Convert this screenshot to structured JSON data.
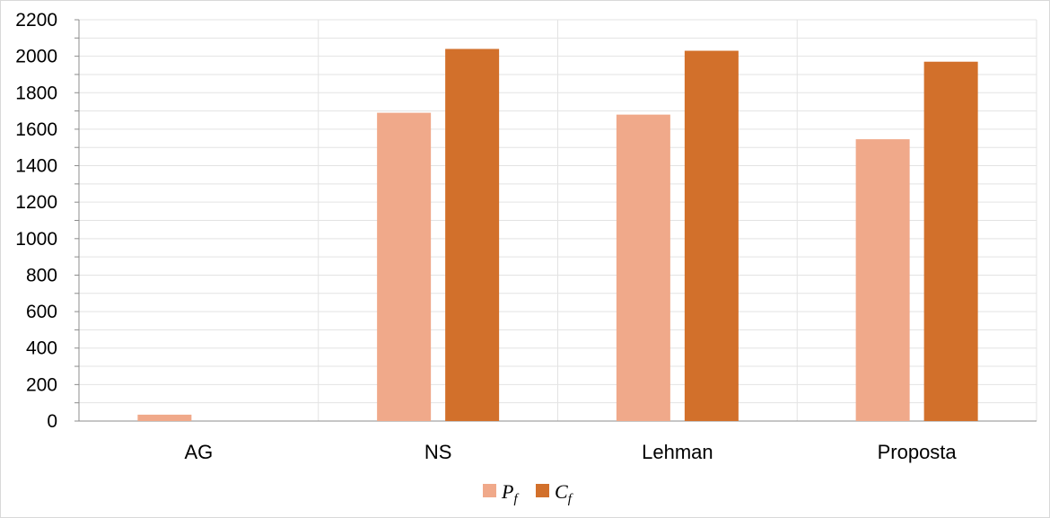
{
  "chart_data": {
    "type": "bar",
    "title": "",
    "xlabel": "",
    "ylabel": "",
    "categories": [
      "AG",
      "NS",
      "Lehman",
      "Proposta"
    ],
    "ylim": [
      0,
      2200
    ],
    "yticks": [
      0,
      200,
      400,
      600,
      800,
      1000,
      1200,
      1400,
      1600,
      1800,
      2000,
      2200
    ],
    "grid": true,
    "legend_position": "bottom",
    "series": [
      {
        "name": "P",
        "subscript": "f",
        "color": "#f0a98a",
        "values": [
          35,
          1690,
          1680,
          1545
        ]
      },
      {
        "name": "C",
        "subscript": "f",
        "color": "#d2702b",
        "values": [
          0,
          2040,
          2030,
          1970
        ]
      }
    ]
  }
}
